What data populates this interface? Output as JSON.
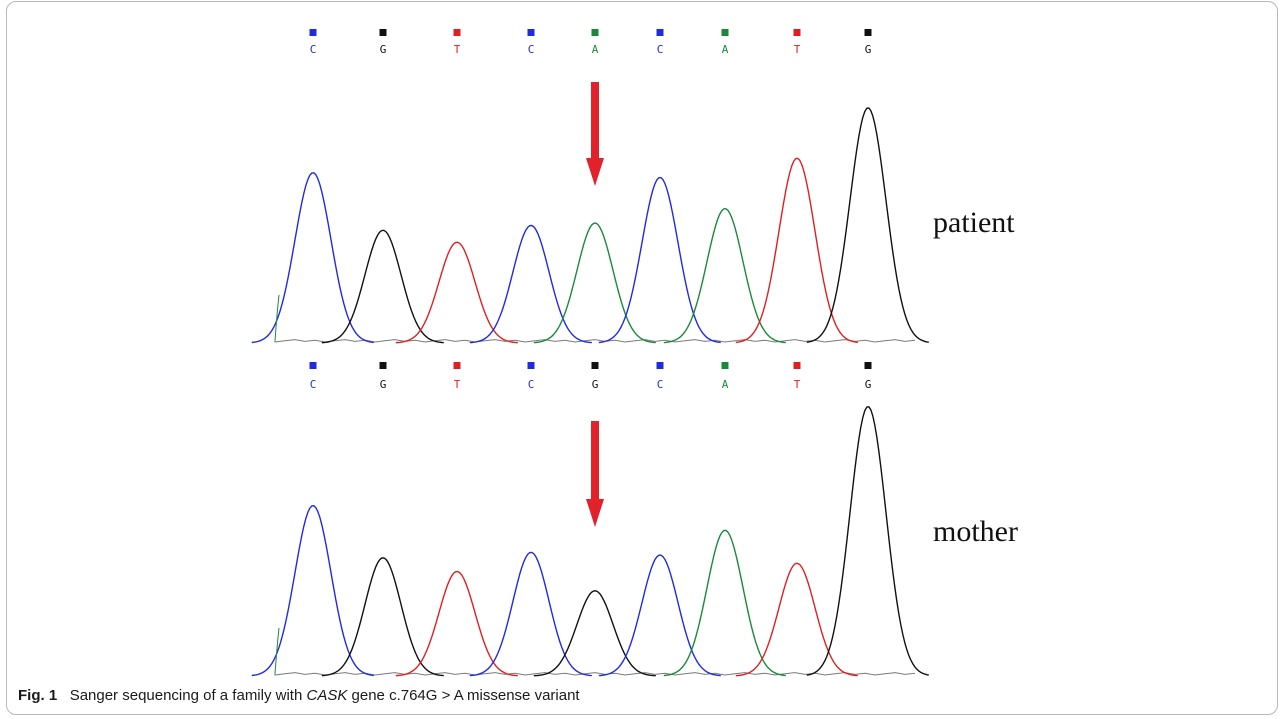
{
  "figure": {
    "caption_label": "Fig. 1",
    "caption_pre": "Sanger sequencing of a family with",
    "caption_gene": "CASK",
    "caption_post": "gene c.764G > A missense variant"
  },
  "colors": {
    "A": "#1a8a3a",
    "C": "#1f2be0",
    "G": "#111111",
    "T": "#e02020",
    "arrow": "#e2222a"
  },
  "chart_data": [
    {
      "type": "chromatogram",
      "sample": "patient",
      "bases": [
        "C",
        "G",
        "T",
        "C",
        "A",
        "C",
        "A",
        "T",
        "G"
      ],
      "peak_heights": [
        0.71,
        0.47,
        0.42,
        0.49,
        0.5,
        0.69,
        0.56,
        0.77,
        0.98
      ],
      "variant_index": 4
    },
    {
      "type": "chromatogram",
      "sample": "mother",
      "bases": [
        "C",
        "G",
        "T",
        "C",
        "G",
        "C",
        "A",
        "T",
        "G"
      ],
      "peak_heights": [
        0.62,
        0.43,
        0.38,
        0.45,
        0.31,
        0.44,
        0.53,
        0.41,
        0.98
      ],
      "variant_index": 4
    }
  ]
}
